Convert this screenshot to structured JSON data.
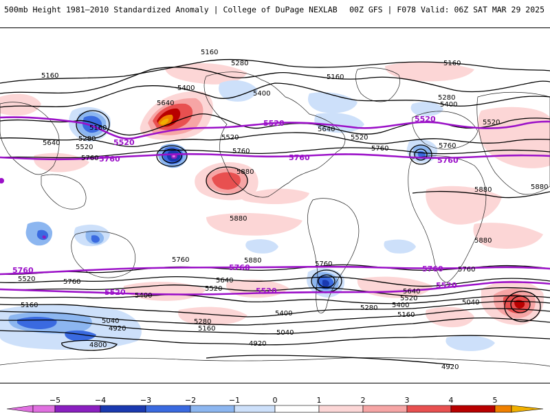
{
  "header": {
    "title": "500mb Height 1981–2010 Standardized Anomaly | College of DuPage NEXLAB",
    "run_info": "00Z GFS | F078 Valid: 06Z SAT MAR 29 2025"
  },
  "colors": {
    "height_contour": "#000000",
    "highlight_contour": "#9b10c8",
    "scale": [
      "#e070e0",
      "#8a1fc0",
      "#1a39b0",
      "#3a6ae0",
      "#8cb6f0",
      "#cde0fa",
      "#ffffff",
      "#fcd6d6",
      "#f6a5a5",
      "#e85050",
      "#b80000",
      "#f08000",
      "#f0b000"
    ]
  },
  "colorbar": {
    "ticks": [
      "−5",
      "−4",
      "−3",
      "−2",
      "−1",
      "0",
      "1",
      "2",
      "3",
      "4",
      "5"
    ]
  },
  "contour_labels": {
    "n_5160_a": "5160",
    "n_5160_b": "5160",
    "n_5160_c": "5160",
    "n_5160_d": "5160",
    "n_5160_e": "5160",
    "n_5280_a": "5280",
    "n_5280_b": "5280",
    "n_5280_c": "5280",
    "n_5400_a": "5400",
    "n_5400_b": "5400",
    "n_5400_c": "5400",
    "n_5520_a": "5520",
    "n_5520_b": "5520",
    "n_5520_c": "5520",
    "n_5520_d": "5520",
    "n_5640_a": "5640",
    "n_5640_b": "5640",
    "n_5640_c": "5640",
    "n_5760_a": "5760",
    "n_5760_b": "5760",
    "n_5760_c": "5760",
    "n_5760_d": "5760",
    "n_5880_a": "5880",
    "n_5880_b": "5880",
    "n_5880_c": "5880",
    "m_5520_a": "5520",
    "m_5520_b": "5520",
    "m_5520_c": "5520",
    "m_5760_a": "5760",
    "m_5760_b": "5760",
    "m_5760_c": "5760",
    "t_5880_a": "5880",
    "t_5880_b": "5880",
    "t_5880_c": "5880",
    "s_5760_a": "5760",
    "s_5760_b": "5760",
    "s_5760_c": "5760",
    "s_5760_d": "5760",
    "s_5640_a": "5640",
    "s_5640_b": "5640",
    "s_5520_a": "5520",
    "s_5520_b": "5520",
    "s_5520_c": "5520",
    "s_5400_a": "5400",
    "s_5400_b": "5400",
    "s_5400_c": "5400",
    "s_5280_a": "5280",
    "s_5280_b": "5280",
    "s_5160_a": "5160",
    "s_5160_b": "5160",
    "s_5160_c": "5160",
    "s_5040_a": "5040",
    "s_5040_b": "5040",
    "s_5040_c": "5040",
    "s_4920_a": "4920",
    "s_4920_b": "4920",
    "s_4920_c": "4920",
    "s_4800_a": "4800",
    "sm_5760_a": "5760",
    "sm_5760_b": "5760",
    "sm_5760_c": "5760",
    "sm_5520_a": "5520",
    "sm_5520_b": "5520",
    "sm_5520_c": "5520"
  }
}
